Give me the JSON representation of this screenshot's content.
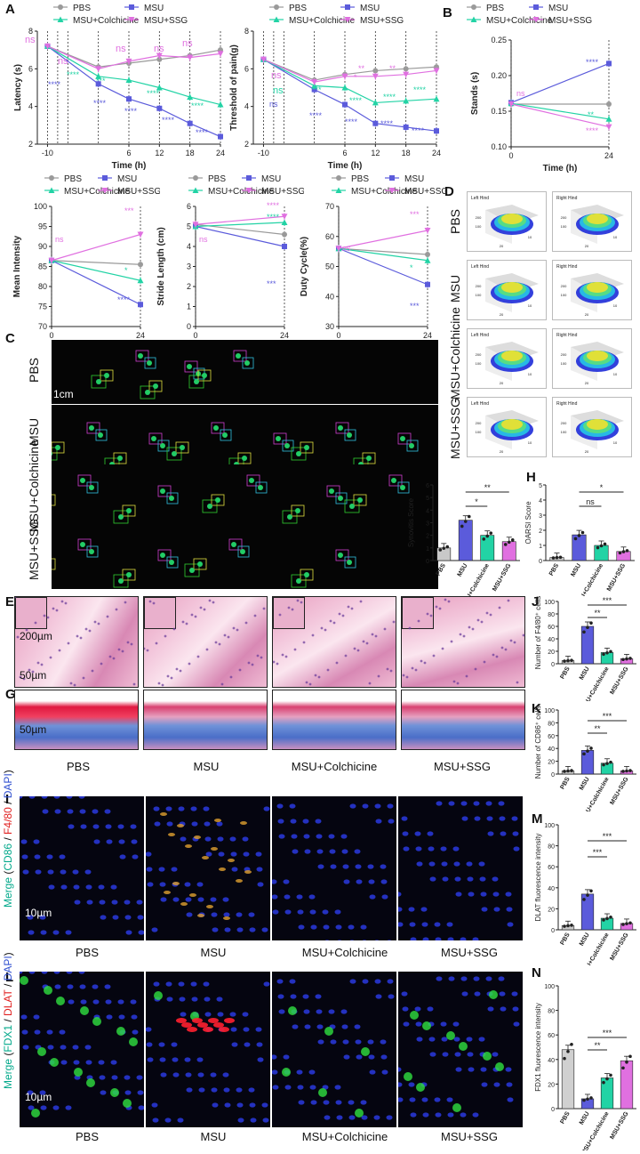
{
  "colors": {
    "pbs": "#9a9a9a",
    "msu": "#5b5bdb",
    "colch": "#22d3a5",
    "ssg": "#e070e0",
    "text": "#222222"
  },
  "letters": {
    "A": "A",
    "B": "B",
    "C": "C",
    "D": "D",
    "E": "E",
    "F": "F",
    "G": "G",
    "H": "H",
    "I": "I",
    "J": "J",
    "K": "K",
    "L": "L",
    "M": "M",
    "N": "N"
  },
  "groups": [
    "PBS",
    "MSU",
    "MSU+Colchicine",
    "MSU+SSG"
  ],
  "legend": {
    "pbs": "PBS",
    "msu": "MSU",
    "colch": "MSU+Colchicine",
    "ssg": "MSU+SSG"
  },
  "charts": [
    {
      "id": "latency",
      "type": "line",
      "ylabel": "Latency (s)",
      "xlabel": "Time (h)",
      "x": [
        -10,
        0,
        6,
        12,
        18,
        24
      ],
      "xticks": [
        "-10",
        "6",
        "12",
        "18",
        "24"
      ],
      "yticks": [
        "2",
        "4",
        "6",
        "8"
      ],
      "ylim": [
        2,
        8
      ],
      "series": [
        {
          "name": "PBS",
          "values": [
            7.2,
            6.1,
            6.3,
            6.5,
            6.7,
            7.0
          ]
        },
        {
          "name": "MSU",
          "values": [
            7.2,
            5.2,
            4.4,
            3.9,
            3.1,
            2.4
          ]
        },
        {
          "name": "MSU+Colchicine",
          "values": [
            7.2,
            5.6,
            5.4,
            5.0,
            4.5,
            4.1
          ]
        },
        {
          "name": "MSU+SSG",
          "values": [
            7.2,
            6.0,
            6.4,
            6.7,
            6.6,
            6.8
          ]
        }
      ],
      "annotations": [
        "ns",
        "ns",
        "ns",
        "ns",
        "ns",
        "****",
        "****",
        "****",
        "****",
        "****",
        "****",
        "***",
        "****",
        "****"
      ]
    },
    {
      "id": "threshold",
      "type": "line",
      "ylabel": "Threshold of pain(g)",
      "xlabel": "Time (h)",
      "x": [
        -10,
        0,
        6,
        12,
        18,
        24
      ],
      "xticks": [
        "-10",
        "6",
        "12",
        "18",
        "24"
      ],
      "yticks": [
        "2",
        "4",
        "6",
        "8"
      ],
      "ylim": [
        2,
        8
      ],
      "series": [
        {
          "name": "PBS",
          "values": [
            6.5,
            5.4,
            5.7,
            5.9,
            6.0,
            6.1
          ]
        },
        {
          "name": "MSU",
          "values": [
            6.5,
            4.9,
            4.1,
            3.1,
            2.9,
            2.7
          ]
        },
        {
          "name": "MSU+Colchicine",
          "values": [
            6.5,
            5.1,
            5.0,
            4.2,
            4.3,
            4.4
          ]
        },
        {
          "name": "MSU+SSG",
          "values": [
            6.5,
            5.3,
            5.6,
            5.6,
            5.7,
            5.9
          ]
        }
      ],
      "annotations": [
        "ns",
        "ns",
        "ns",
        "**",
        "**",
        "****",
        "****",
        "****",
        "****",
        "***",
        "****",
        "****",
        "****",
        "*"
      ]
    },
    {
      "id": "stands",
      "type": "line",
      "ylabel": "Stands (s)",
      "xlabel": "Time (h)",
      "x": [
        0,
        24
      ],
      "xticks": [
        "0",
        "24"
      ],
      "yticks": [
        "0.10",
        "0.15",
        "0.20",
        "0.25"
      ],
      "ylim": [
        0.1,
        0.25
      ],
      "series": [
        {
          "name": "PBS",
          "values": [
            0.16,
            0.16
          ]
        },
        {
          "name": "MSU",
          "values": [
            0.162,
            0.217
          ]
        },
        {
          "name": "MSU+Colchicine",
          "values": [
            0.161,
            0.139
          ]
        },
        {
          "name": "MSU+SSG",
          "values": [
            0.16,
            0.128
          ]
        }
      ],
      "annotations": [
        "ns",
        "****",
        "**",
        "****"
      ]
    },
    {
      "id": "intensity",
      "type": "line",
      "ylabel": "Mean Intensity",
      "xlabel": "Time (h)",
      "x": [
        0,
        24
      ],
      "xticks": [
        "0",
        "24"
      ],
      "yticks": [
        "70",
        "75",
        "80",
        "85",
        "90",
        "95",
        "100"
      ],
      "ylim": [
        70,
        100
      ],
      "series": [
        {
          "name": "PBS",
          "values": [
            86.5,
            85.5
          ]
        },
        {
          "name": "MSU",
          "values": [
            86.5,
            75.5
          ]
        },
        {
          "name": "MSU+Colchicine",
          "values": [
            86.5,
            81.5
          ]
        },
        {
          "name": "MSU+SSG",
          "values": [
            86.5,
            93.0
          ]
        }
      ],
      "annotations": [
        "ns",
        "***",
        "*",
        "****"
      ]
    },
    {
      "id": "stride",
      "type": "line",
      "ylabel": "Stride Length (cm)",
      "xlabel": "Time (h)",
      "x": [
        0,
        24
      ],
      "xticks": [
        "0",
        "24"
      ],
      "yticks": [
        "0",
        "1",
        "2",
        "3",
        "4",
        "5",
        "6"
      ],
      "ylim": [
        0,
        6
      ],
      "series": [
        {
          "name": "PBS",
          "values": [
            5.1,
            4.6
          ]
        },
        {
          "name": "MSU",
          "values": [
            5.0,
            4.0
          ]
        },
        {
          "name": "MSU+Colchicine",
          "values": [
            5.0,
            5.2
          ]
        },
        {
          "name": "MSU+SSG",
          "values": [
            5.1,
            5.5
          ]
        }
      ],
      "annotations": [
        "ns",
        "****",
        "****",
        "***"
      ]
    },
    {
      "id": "duty",
      "type": "line",
      "ylabel": "Duty Cycle(%)",
      "xlabel": "Time (h)",
      "x": [
        0,
        24
      ],
      "xticks": [
        "0",
        "24"
      ],
      "yticks": [
        "30",
        "40",
        "50",
        "60",
        "70"
      ],
      "ylim": [
        30,
        70
      ],
      "series": [
        {
          "name": "PBS",
          "values": [
            56,
            54
          ]
        },
        {
          "name": "MSU",
          "values": [
            56,
            44
          ]
        },
        {
          "name": "MSU+Colchicine",
          "values": [
            56,
            52
          ]
        },
        {
          "name": "MSU+SSG",
          "values": [
            56,
            62
          ]
        }
      ],
      "annotations": [
        "ns",
        "***",
        "*",
        "***"
      ]
    },
    {
      "id": "synovitis",
      "type": "bar",
      "ylabel": "Synovitis Score",
      "yticks": [
        "0",
        "1",
        "2",
        "3",
        "4",
        "5",
        "6"
      ],
      "ylim": [
        0,
        6
      ],
      "values": [
        1.0,
        3.2,
        2.0,
        1.5
      ],
      "sig": [
        "**",
        "*"
      ]
    },
    {
      "id": "oarsi",
      "type": "bar",
      "ylabel": "OARSI Score",
      "yticks": [
        "0",
        "1",
        "2",
        "3",
        "4",
        "5"
      ],
      "ylim": [
        0,
        5
      ],
      "values": [
        0.2,
        1.7,
        1.0,
        0.6
      ],
      "sig": [
        "*",
        "ns"
      ]
    },
    {
      "id": "f480",
      "type": "bar",
      "ylabel": "Number of F4/80⁺ cells",
      "yticks": [
        "0",
        "20",
        "40",
        "60",
        "80",
        "100"
      ],
      "ylim": [
        0,
        100
      ],
      "values": [
        5,
        60,
        18,
        8
      ],
      "sig": [
        "***",
        "**"
      ]
    },
    {
      "id": "cd86",
      "type": "bar",
      "ylabel": "Number of CD86⁺ cells",
      "yticks": [
        "0",
        "20",
        "40",
        "60",
        "80",
        "100"
      ],
      "ylim": [
        0,
        100
      ],
      "values": [
        5,
        37,
        17,
        5
      ],
      "sig": [
        "***",
        "**"
      ]
    },
    {
      "id": "dlat",
      "type": "bar",
      "ylabel": "DLAT fluorescence intensity",
      "yticks": [
        "0",
        "20",
        "40",
        "60",
        "80",
        "100"
      ],
      "ylim": [
        0,
        100
      ],
      "values": [
        4,
        34,
        11,
        6
      ],
      "sig": [
        "***",
        "***"
      ]
    },
    {
      "id": "fdx1",
      "type": "bar",
      "ylabel": "FDX1 fluorescence intensity",
      "yticks": [
        "0",
        "20",
        "40",
        "60",
        "80",
        "100"
      ],
      "ylim": [
        0,
        100
      ],
      "values": [
        48,
        8,
        25,
        39
      ],
      "sig": [
        "***",
        "**"
      ]
    }
  ],
  "panelC": {
    "scalebar": "1cm",
    "labels": [
      "PBS",
      "MSU",
      "MSU+Colchicine",
      "MSU+SSG"
    ],
    "paw": [
      "RH",
      "RF",
      "LF",
      "LH"
    ]
  },
  "panelD": {
    "left": "Left Hind",
    "right": "Right Hind",
    "ticks": [
      "100",
      "200",
      "10",
      "20"
    ]
  },
  "panelE": {
    "scale1": "200µm",
    "scale2": "50µm"
  },
  "panelG": {
    "scale": "50µm"
  },
  "panelI": {
    "merge": "Merge",
    "m1": "CD86",
    "sep": " / ",
    "m2": "F4/80",
    "m3": "DAPI",
    "scale": "10µm"
  },
  "panelL": {
    "merge": "Merge",
    "m1": "FDX1",
    "sep": " / ",
    "m2": "DLAT",
    "m3": "DAPI",
    "scale": "10µm"
  }
}
